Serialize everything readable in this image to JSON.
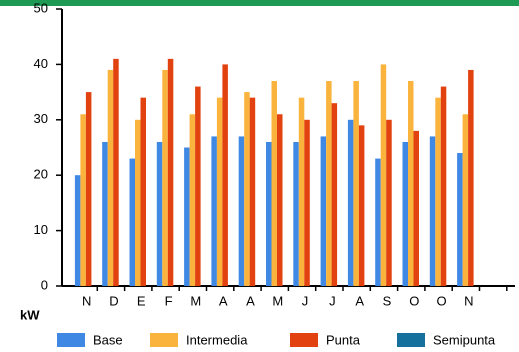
{
  "chart_data": {
    "type": "bar",
    "y_label": "kW",
    "categories": [
      "N",
      "D",
      "E",
      "F",
      "M",
      "A",
      "A",
      "M",
      "J",
      "J",
      "A",
      "S",
      "O",
      "O",
      "N",
      null
    ],
    "series": [
      {
        "name": "Base",
        "color": "#3f88e3",
        "values": [
          20,
          26,
          23,
          26,
          25,
          27,
          27,
          26,
          26,
          27,
          30,
          23,
          26,
          27,
          24,
          null
        ]
      },
      {
        "name": "Intermedia",
        "color": "#fab43e",
        "values": [
          31,
          39,
          30,
          39,
          31,
          34,
          35,
          37,
          34,
          37,
          37,
          40,
          37,
          34,
          31,
          null
        ]
      },
      {
        "name": "Punta",
        "color": "#e2420f",
        "values": [
          35,
          41,
          34,
          41,
          36,
          40,
          34,
          31,
          30,
          33,
          29,
          30,
          28,
          36,
          39,
          null
        ]
      },
      {
        "name": "Semipunta",
        "color": "#16709e",
        "values": [
          null,
          null,
          null,
          null,
          null,
          null,
          null,
          null,
          null,
          null,
          null,
          null,
          null,
          null,
          null,
          null
        ]
      }
    ],
    "ylim": [
      0,
      50
    ],
    "yticks": [
      0,
      10,
      20,
      30,
      40,
      50
    ],
    "grid": false
  }
}
